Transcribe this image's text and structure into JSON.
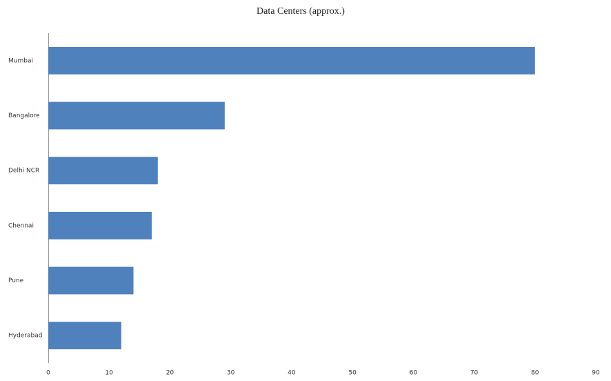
{
  "chart_data": {
    "type": "barh",
    "title": "Data Centers (approx.)",
    "categories": [
      "Mumbai",
      "Bangalore",
      "Delhi NCR",
      "Chennai",
      "Pune",
      "Hyderabad"
    ],
    "values": [
      80,
      29,
      18,
      17,
      14,
      12
    ],
    "color": "#4f81bd",
    "xlim": [
      0,
      90
    ],
    "xticks": [
      0,
      10,
      20,
      30,
      40,
      50,
      60,
      70,
      80,
      90
    ],
    "grid": false
  }
}
